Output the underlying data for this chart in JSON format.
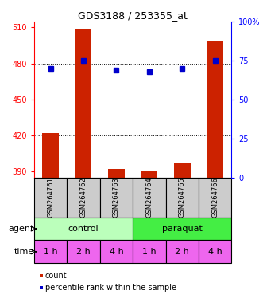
{
  "title": "GDS3188 / 253355_at",
  "samples": [
    "GSM264761",
    "GSM264762",
    "GSM264763",
    "GSM264764",
    "GSM264765",
    "GSM264766"
  ],
  "counts": [
    422,
    509,
    392,
    390,
    397,
    499
  ],
  "percentiles": [
    70,
    75,
    69,
    68,
    70,
    75
  ],
  "ylim_left": [
    385,
    515
  ],
  "ylim_right": [
    0,
    100
  ],
  "yticks_left": [
    390,
    420,
    450,
    480,
    510
  ],
  "yticks_right": [
    0,
    25,
    50,
    75,
    100
  ],
  "ytick_right_labels": [
    "0",
    "25",
    "50",
    "75",
    "100%"
  ],
  "agent_groups": [
    {
      "label": "control",
      "cols": [
        0,
        1,
        2
      ],
      "color": "#bbffbb"
    },
    {
      "label": "paraquat",
      "cols": [
        3,
        4,
        5
      ],
      "color": "#44ee44"
    }
  ],
  "time_labels": [
    "1 h",
    "2 h",
    "4 h",
    "1 h",
    "2 h",
    "4 h"
  ],
  "time_color": "#ee66ee",
  "bar_color": "#cc2200",
  "dot_color": "#0000cc",
  "label_agent": "agent",
  "label_time": "time",
  "legend_count": "count",
  "legend_percentile": "percentile rank within the sample",
  "bar_width": 0.5,
  "background_sample": "#cccccc",
  "gridline_ticks": [
    420,
    450,
    480
  ],
  "fig_width": 3.31,
  "fig_height": 3.84,
  "dpi": 100
}
